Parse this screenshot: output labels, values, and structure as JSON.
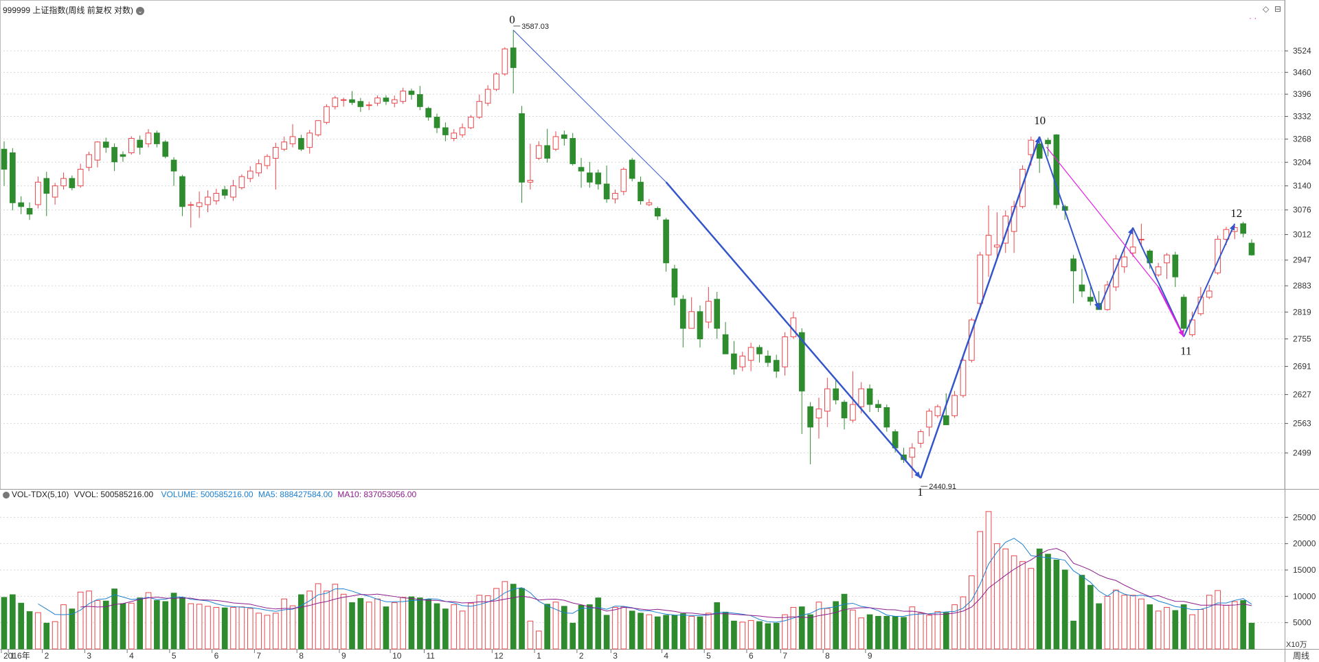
{
  "title": "999999 上证指数(周线 前复权 对数)",
  "vol_header": {
    "name": "VOL-TDX(5,10)",
    "vvol": "VVOL: 500585216.00",
    "volume": "VOLUME: 500585216.00",
    "ma5": "MA5: 888427584.00",
    "ma10": "MA10: 837053056.00"
  },
  "colors": {
    "up": "#e8454a",
    "down": "#2e8b2e",
    "wave": "#3355cc",
    "magenta": "#e020e0",
    "ma5": "#1a7fd0",
    "ma10": "#8b1a8b",
    "grid": "#d6d6d6"
  },
  "chart_data": {
    "type": "candlestick",
    "price_axis": {
      "scale": "log",
      "ticks": [
        3524,
        3460,
        3396,
        3332,
        3268,
        3204,
        3140,
        3076,
        3012,
        2947,
        2883,
        2819,
        2755,
        2691,
        2627,
        2563,
        2499
      ]
    },
    "volume_axis": {
      "ticks": [
        25000,
        20000,
        15000,
        10000,
        5000
      ],
      "unit": "X10万"
    },
    "x_labels": [
      "2016年",
      "1",
      "2",
      "3",
      "4",
      "5",
      "6",
      "7",
      "8",
      "9",
      "10",
      "11",
      "12",
      "1",
      "2",
      "3",
      "4",
      "5",
      "6",
      "7",
      "8",
      "9"
    ],
    "period_label": "周线",
    "annotations": {
      "high": "3587.03",
      "low": "2440.91"
    },
    "wave_labels": [
      "0",
      "1",
      "10",
      "11",
      "12"
    ],
    "candles": [
      [
        3240,
        3185,
        3262,
        3140,
        9800
      ],
      [
        3230,
        3095,
        3243,
        3075,
        10300
      ],
      [
        3095,
        3085,
        3112,
        3065,
        8700
      ],
      [
        3080,
        3065,
        3096,
        3050,
        7100
      ],
      [
        3090,
        3150,
        3165,
        3080,
        6900
      ],
      [
        3160,
        3120,
        3178,
        3060,
        4900
      ],
      [
        3110,
        3140,
        3148,
        3090,
        5200
      ],
      [
        3140,
        3160,
        3176,
        3130,
        8400
      ],
      [
        3160,
        3135,
        3168,
        3128,
        7600
      ],
      [
        3140,
        3185,
        3200,
        3135,
        10800
      ],
      [
        3190,
        3225,
        3233,
        3180,
        11000
      ],
      [
        3210,
        3260,
        3262,
        3190,
        9200
      ],
      [
        3260,
        3245,
        3272,
        3230,
        9100
      ],
      [
        3245,
        3205,
        3256,
        3180,
        11400
      ],
      [
        3225,
        3220,
        3234,
        3205,
        8600
      ],
      [
        3230,
        3270,
        3276,
        3225,
        8700
      ],
      [
        3265,
        3245,
        3278,
        3225,
        9700
      ],
      [
        3255,
        3285,
        3296,
        3245,
        10700
      ],
      [
        3285,
        3255,
        3292,
        3245,
        9200
      ],
      [
        3260,
        3220,
        3265,
        3215,
        9000
      ],
      [
        3210,
        3180,
        3218,
        3140,
        10600
      ],
      [
        3165,
        3085,
        3170,
        3060,
        9800
      ],
      [
        3090,
        3090,
        3098,
        3030,
        8600
      ],
      [
        3085,
        3095,
        3125,
        3055,
        8500
      ],
      [
        3090,
        3110,
        3128,
        3070,
        8100
      ],
      [
        3100,
        3120,
        3132,
        3090,
        7900
      ],
      [
        3130,
        3115,
        3140,
        3105,
        7800
      ],
      [
        3110,
        3140,
        3156,
        3100,
        7900
      ],
      [
        3135,
        3165,
        3171,
        3130,
        8000
      ],
      [
        3160,
        3180,
        3193,
        3150,
        7700
      ],
      [
        3175,
        3200,
        3212,
        3165,
        6800
      ],
      [
        3195,
        3220,
        3226,
        3185,
        6400
      ],
      [
        3215,
        3245,
        3258,
        3130,
        6800
      ],
      [
        3240,
        3260,
        3275,
        3235,
        9500
      ],
      [
        3255,
        3275,
        3310,
        3245,
        8200
      ],
      [
        3270,
        3240,
        3280,
        3235,
        10300
      ],
      [
        3245,
        3285,
        3294,
        3228,
        11000
      ],
      [
        3280,
        3320,
        3321,
        3275,
        12400
      ],
      [
        3315,
        3360,
        3367,
        3310,
        11000
      ],
      [
        3360,
        3385,
        3391,
        3352,
        12300
      ],
      [
        3380,
        3380,
        3386,
        3360,
        10400
      ],
      [
        3380,
        3372,
        3405,
        3365,
        8800
      ],
      [
        3375,
        3360,
        3385,
        3345,
        9600
      ],
      [
        3365,
        3365,
        3374,
        3350,
        8900
      ],
      [
        3370,
        3385,
        3392,
        3362,
        9500
      ],
      [
        3385,
        3375,
        3393,
        3365,
        8000
      ],
      [
        3370,
        3380,
        3392,
        3358,
        8800
      ],
      [
        3375,
        3405,
        3415,
        3368,
        9800
      ],
      [
        3405,
        3395,
        3412,
        3380,
        9900
      ],
      [
        3395,
        3360,
        3420,
        3350,
        9700
      ],
      [
        3355,
        3330,
        3360,
        3320,
        9400
      ],
      [
        3330,
        3300,
        3340,
        3285,
        8600
      ],
      [
        3300,
        3280,
        3315,
        3262,
        7600
      ],
      [
        3270,
        3285,
        3296,
        3262,
        8400
      ],
      [
        3280,
        3300,
        3312,
        3272,
        7200
      ],
      [
        3300,
        3330,
        3336,
        3296,
        8700
      ],
      [
        3330,
        3375,
        3395,
        3325,
        10200
      ],
      [
        3370,
        3410,
        3422,
        3362,
        10100
      ],
      [
        3410,
        3455,
        3460,
        3405,
        11500
      ],
      [
        3455,
        3530,
        3535,
        3450,
        12800
      ],
      [
        3533,
        3474,
        3587,
        3398,
        12300
      ],
      [
        3340,
        3150,
        3362,
        3095,
        11500
      ],
      [
        3150,
        3155,
        3255,
        3130,
        5300
      ],
      [
        3215,
        3250,
        3262,
        3210,
        3400
      ],
      [
        3250,
        3215,
        3297,
        3203,
        8500
      ],
      [
        3240,
        3275,
        3290,
        3235,
        8900
      ],
      [
        3280,
        3270,
        3292,
        3250,
        8100
      ],
      [
        3270,
        3200,
        3285,
        3195,
        4900
      ],
      [
        3190,
        3180,
        3216,
        3135,
        8300
      ],
      [
        3175,
        3150,
        3205,
        3135,
        8400
      ],
      [
        3175,
        3145,
        3184,
        3130,
        9700
      ],
      [
        3145,
        3105,
        3195,
        3095,
        6400
      ],
      [
        3105,
        3120,
        3130,
        3093,
        7900
      ],
      [
        3125,
        3185,
        3190,
        3115,
        8000
      ],
      [
        3210,
        3160,
        3216,
        3152,
        7200
      ],
      [
        3150,
        3100,
        3165,
        3090,
        6800
      ],
      [
        3090,
        3095,
        3105,
        3086,
        6500
      ],
      [
        3080,
        3060,
        3085,
        3050,
        6100
      ],
      [
        3050,
        2940,
        3055,
        2918,
        6400
      ],
      [
        2925,
        2855,
        2935,
        2835,
        6400
      ],
      [
        2850,
        2780,
        2860,
        2735,
        6700
      ],
      [
        2780,
        2820,
        2855,
        2780,
        6200
      ],
      [
        2820,
        2755,
        2835,
        2735,
        6100
      ],
      [
        2795,
        2845,
        2880,
        2780,
        6800
      ],
      [
        2850,
        2780,
        2868,
        2755,
        8800
      ],
      [
        2765,
        2720,
        2795,
        2720,
        7000
      ],
      [
        2720,
        2685,
        2750,
        2672,
        5300
      ],
      [
        2690,
        2715,
        2725,
        2680,
        5100
      ],
      [
        2705,
        2735,
        2746,
        2680,
        5400
      ],
      [
        2735,
        2720,
        2741,
        2700,
        5200
      ],
      [
        2715,
        2700,
        2728,
        2690,
        4800
      ],
      [
        2705,
        2680,
        2718,
        2665,
        4900
      ],
      [
        2690,
        2760,
        2771,
        2670,
        6500
      ],
      [
        2760,
        2805,
        2820,
        2755,
        7900
      ],
      [
        2770,
        2635,
        2780,
        2540,
        8000
      ],
      [
        2600,
        2555,
        2610,
        2475,
        6500
      ],
      [
        2575,
        2595,
        2620,
        2530,
        8900
      ],
      [
        2590,
        2640,
        2665,
        2555,
        7700
      ],
      [
        2640,
        2615,
        2660,
        2605,
        9000
      ],
      [
        2610,
        2575,
        2615,
        2550,
        10400
      ],
      [
        2570,
        2605,
        2680,
        2565,
        7400
      ],
      [
        2600,
        2640,
        2655,
        2585,
        5900
      ],
      [
        2640,
        2605,
        2650,
        2588,
        6500
      ],
      [
        2605,
        2598,
        2615,
        2588,
        6200
      ],
      [
        2598,
        2555,
        2605,
        2545,
        6200
      ],
      [
        2545,
        2510,
        2550,
        2500,
        6200
      ],
      [
        2495,
        2485,
        2510,
        2478,
        6000
      ],
      [
        2490,
        2510,
        2520,
        2446,
        8000
      ],
      [
        2520,
        2545,
        2550,
        2510,
        6800
      ],
      [
        2555,
        2590,
        2596,
        2535,
        6400
      ],
      [
        2580,
        2600,
        2605,
        2575,
        7100
      ],
      [
        2580,
        2560,
        2630,
        2560,
        6900
      ],
      [
        2580,
        2625,
        2635,
        2575,
        8400
      ],
      [
        2625,
        2705,
        2712,
        2620,
        9900
      ],
      [
        2705,
        2800,
        2805,
        2700,
        13900
      ],
      [
        2840,
        2960,
        2968,
        2835,
        22300
      ],
      [
        2960,
        3010,
        3088,
        2905,
        26100
      ],
      [
        2980,
        2985,
        3070,
        2955,
        20000
      ],
      [
        2990,
        3060,
        3075,
        2965,
        19000
      ],
      [
        3020,
        3085,
        3100,
        2965,
        17700
      ],
      [
        3085,
        3185,
        3196,
        3080,
        16600
      ],
      [
        3225,
        3265,
        3275,
        3195,
        15300
      ],
      [
        3255,
        3215,
        3270,
        3175,
        19000
      ],
      [
        3265,
        3255,
        3272,
        3220,
        18000
      ],
      [
        3280,
        3090,
        3282,
        3080,
        16900
      ],
      [
        3085,
        3075,
        3090,
        3050,
        15000
      ],
      [
        2950,
        2920,
        2960,
        2840,
        5300
      ],
      [
        2885,
        2870,
        2925,
        2855,
        14000
      ],
      [
        2855,
        2845,
        2880,
        2835,
        12100
      ],
      [
        2840,
        2825,
        2870,
        2825,
        8600
      ],
      [
        2825,
        2885,
        2895,
        2822,
        10000
      ],
      [
        2880,
        2950,
        2960,
        2870,
        11200
      ],
      [
        2930,
        2955,
        2978,
        2915,
        10200
      ],
      [
        2965,
        2980,
        3030,
        2955,
        10200
      ],
      [
        3000,
        3000,
        3040,
        2985,
        9500
      ],
      [
        2970,
        2940,
        2975,
        2925,
        8400
      ],
      [
        2910,
        2930,
        2940,
        2905,
        7200
      ],
      [
        2940,
        2960,
        2965,
        2900,
        7900
      ],
      [
        2960,
        2905,
        2968,
        2880,
        7300
      ],
      [
        2855,
        2780,
        2862,
        2772,
        8400
      ],
      [
        2765,
        2800,
        2820,
        2760,
        6500
      ],
      [
        2815,
        2855,
        2880,
        2810,
        7500
      ],
      [
        2855,
        2870,
        2885,
        2850,
        10200
      ],
      [
        2915,
        3000,
        3010,
        2910,
        11100
      ],
      [
        3000,
        3025,
        3032,
        2985,
        8300
      ],
      [
        3020,
        3030,
        3035,
        3000,
        9000
      ],
      [
        3040,
        3015,
        3045,
        3005,
        9200
      ],
      [
        2990,
        2960,
        3000,
        2958,
        4900
      ]
    ]
  }
}
